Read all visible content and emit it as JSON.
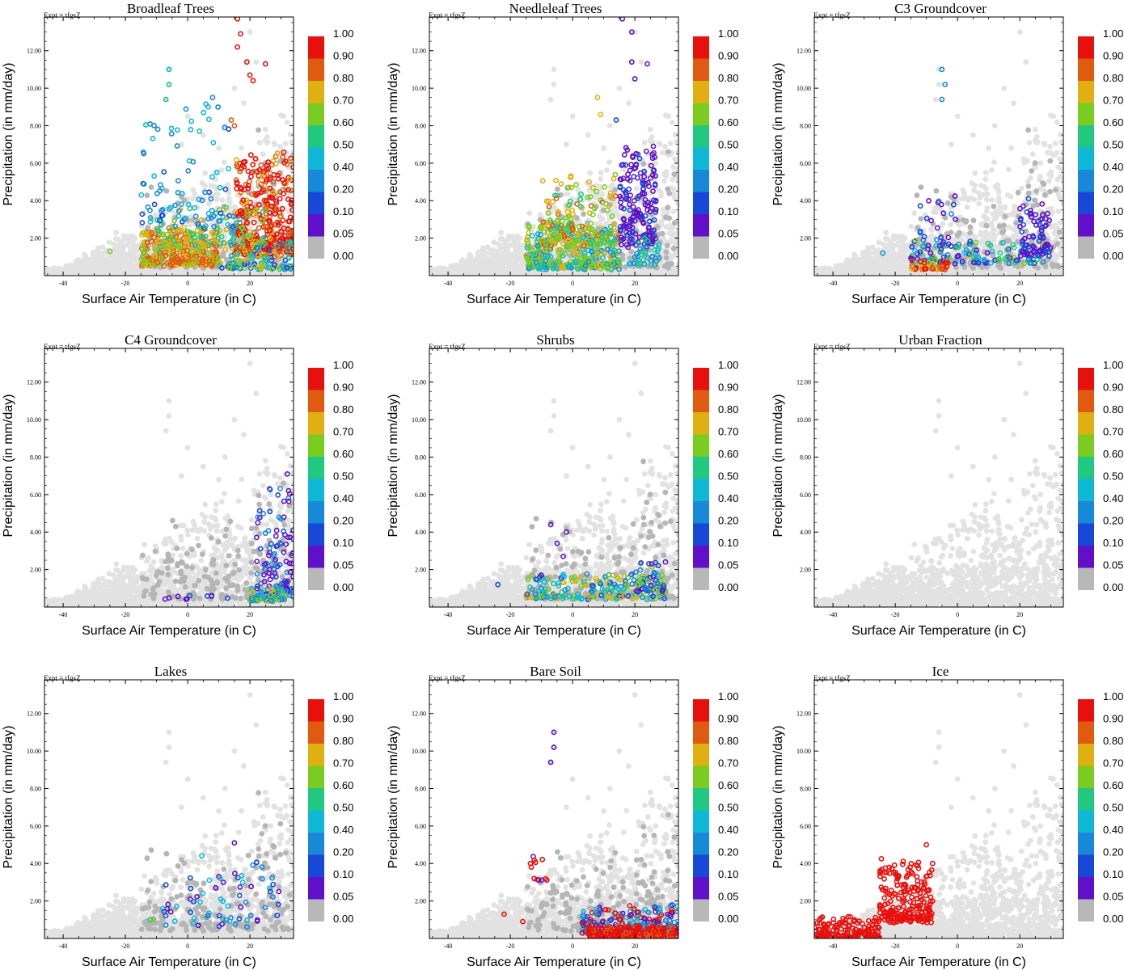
{
  "chart_data": {
    "type": "scatter",
    "layout": "3x3 grid",
    "xlabel": "Surface Air Temperature (in C)",
    "ylabel": "Precipitation (in mm/day)",
    "xlim": [
      -46,
      34
    ],
    "ylim": [
      0,
      13.8
    ],
    "xticks": [
      "-40",
      "-20",
      "0",
      "20"
    ],
    "xtick_values": [
      -40,
      -20,
      0,
      20
    ],
    "yticks": [
      "2.00",
      "4.00",
      "6.00",
      "8.00",
      "10.00",
      "12.00"
    ],
    "ytick_values": [
      2,
      4,
      6,
      8,
      10,
      12
    ],
    "expt_label": "Expt = tfgsZ",
    "colorbar": {
      "labels": [
        "1.00",
        "0.90",
        "0.80",
        "0.70",
        "0.60",
        "0.50",
        "0.40",
        "0.20",
        "0.10",
        "0.05",
        "0.00"
      ],
      "colors": [
        "#e8100c",
        "#e05a10",
        "#e0b010",
        "#7acc20",
        "#20c880",
        "#10b8d8",
        "#1888d8",
        "#1848d8",
        "#6010c8",
        "#b8b8b8"
      ],
      "bin_meaning": [
        "0.90-1.00",
        "0.80-0.90",
        "0.70-0.80",
        "0.60-0.70",
        "0.50-0.60",
        "0.40-0.50",
        "0.20-0.40",
        "0.10-0.20",
        "0.05-0.10",
        "0.00-0.05"
      ]
    },
    "background_color": "#e2e2e2",
    "zero_fraction_color": "#b5b5b5",
    "panels": [
      {
        "title": "Broadleaf Trees",
        "colored_clusters": [
          {
            "x_range": [
              15,
              34
            ],
            "y_range": [
              1.0,
              6.8
            ],
            "n": 360,
            "colors": [
              0,
              0,
              0,
              0,
              1,
              1,
              2
            ]
          },
          {
            "x_range": [
              -15,
              10
            ],
            "y_range": [
              0.5,
              2.6
            ],
            "n": 320,
            "colors": [
              1,
              1,
              2,
              2,
              1,
              3
            ]
          },
          {
            "x_range": [
              -10,
              25
            ],
            "y_range": [
              1.5,
              3.8
            ],
            "n": 100,
            "colors": [
              2,
              3,
              4,
              5
            ]
          },
          {
            "x_range": [
              -15,
              15
            ],
            "y_range": [
              2.5,
              9.5
            ],
            "n": 90,
            "colors": [
              5,
              6,
              7,
              6,
              5
            ]
          },
          {
            "x_range": [
              10,
              34
            ],
            "y_range": [
              0.3,
              2.0
            ],
            "n": 100,
            "colors": [
              2,
              3,
              4,
              5,
              6,
              7
            ]
          }
        ],
        "colored_points": [
          {
            "x": 16,
            "y": 13.7,
            "c": 0
          },
          {
            "x": 19,
            "y": 11.4,
            "c": 0
          },
          {
            "x": 21,
            "y": 10.4,
            "c": 0
          },
          {
            "x": 25,
            "y": 11.3,
            "c": 0
          },
          {
            "x": 20,
            "y": 10.7,
            "c": 0
          },
          {
            "x": 16,
            "y": 12.2,
            "c": 0
          },
          {
            "x": 17,
            "y": 12.9,
            "c": 0
          },
          {
            "x": -6,
            "y": 11.0,
            "c": 5
          },
          {
            "x": -6,
            "y": 10.2,
            "c": 4
          },
          {
            "x": -7,
            "y": 9.4,
            "c": 4
          },
          {
            "x": 8,
            "y": 9.5,
            "c": 6
          },
          {
            "x": 15,
            "y": 8.0,
            "c": 1
          },
          {
            "x": -25,
            "y": 1.3,
            "c": 3
          },
          {
            "x": 14,
            "y": 8.3,
            "c": 1
          }
        ]
      },
      {
        "title": "Needleleaf Trees",
        "colored_clusters": [
          {
            "x_range": [
              -15,
              15
            ],
            "y_range": [
              0.3,
              2.8
            ],
            "n": 380,
            "colors": [
              3,
              4,
              5,
              6,
              3,
              2
            ]
          },
          {
            "x_range": [
              -10,
              15
            ],
            "y_range": [
              1.5,
              5.5
            ],
            "n": 160,
            "colors": [
              2,
              2,
              3,
              1,
              4
            ]
          },
          {
            "x_range": [
              15,
              27
            ],
            "y_range": [
              1.5,
              7.0
            ],
            "n": 170,
            "colors": [
              8,
              8,
              8,
              7
            ]
          },
          {
            "x_range": [
              18,
              28
            ],
            "y_range": [
              0.5,
              2.2
            ],
            "n": 40,
            "colors": [
              6,
              5,
              4
            ]
          }
        ],
        "colored_points": [
          {
            "x": 16,
            "y": 13.7,
            "c": 8
          },
          {
            "x": 19,
            "y": 11.4,
            "c": 8
          },
          {
            "x": 20,
            "y": 10.5,
            "c": 8
          },
          {
            "x": 24,
            "y": 11.3,
            "c": 8
          },
          {
            "x": 19,
            "y": 13.0,
            "c": 8
          },
          {
            "x": 8,
            "y": 9.5,
            "c": 2
          },
          {
            "x": 14,
            "y": 8.3,
            "c": 7
          },
          {
            "x": 9,
            "y": 8.6,
            "c": 2
          }
        ]
      },
      {
        "title": "C3 Groundcover",
        "colored_clusters": [
          {
            "x_range": [
              -15,
              28
            ],
            "y_range": [
              0.6,
              1.9
            ],
            "n": 140,
            "colors": [
              6,
              7,
              8,
              5,
              4,
              3
            ]
          },
          {
            "x_range": [
              20,
              30
            ],
            "y_range": [
              1.0,
              4.2
            ],
            "n": 80,
            "colors": [
              8,
              8,
              7
            ]
          },
          {
            "x_range": [
              -15,
              -3
            ],
            "y_range": [
              0.3,
              0.8
            ],
            "n": 40,
            "colors": [
              0,
              1,
              2
            ]
          },
          {
            "x_range": [
              -12,
              0
            ],
            "y_range": [
              1.5,
              4.5
            ],
            "n": 25,
            "colors": [
              8,
              7,
              6
            ]
          }
        ],
        "colored_points": [
          {
            "x": -5,
            "y": 11.0,
            "c": 6
          },
          {
            "x": -4,
            "y": 10.2,
            "c": 6
          },
          {
            "x": -5,
            "y": 9.4,
            "c": 6
          },
          {
            "x": -24,
            "y": 1.2,
            "c": 6
          }
        ]
      },
      {
        "title": "C4 Groundcover",
        "colored_clusters": [
          {
            "x_range": [
              22,
              34
            ],
            "y_range": [
              0.4,
              6.5
            ],
            "n": 110,
            "colors": [
              8,
              8,
              7,
              6
            ]
          },
          {
            "x_range": [
              20,
              32
            ],
            "y_range": [
              0.3,
              1.2
            ],
            "n": 60,
            "colors": [
              5,
              4,
              3,
              2,
              6
            ]
          },
          {
            "x_range": [
              -8,
              15
            ],
            "y_range": [
              0.4,
              0.7
            ],
            "n": 10,
            "colors": [
              8,
              7
            ]
          }
        ],
        "colored_points": [
          {
            "x": 32,
            "y": 7.1,
            "c": 8
          }
        ]
      },
      {
        "title": "Shrubs",
        "colored_clusters": [
          {
            "x_range": [
              -15,
              30
            ],
            "y_range": [
              0.4,
              1.8
            ],
            "n": 200,
            "colors": [
              3,
              4,
              5,
              6,
              7,
              2
            ]
          },
          {
            "x_range": [
              20,
              30
            ],
            "y_range": [
              0.8,
              2.6
            ],
            "n": 50,
            "colors": [
              6,
              7,
              8,
              3
            ]
          }
        ],
        "colored_points": [
          {
            "x": -5,
            "y": 3.4,
            "c": 8
          },
          {
            "x": -7,
            "y": 4.4,
            "c": 8
          },
          {
            "x": -3,
            "y": 2.7,
            "c": 8
          },
          {
            "x": -24,
            "y": 1.2,
            "c": 7
          },
          {
            "x": -10,
            "y": 1.7,
            "c": 8
          },
          {
            "x": -2,
            "y": 4.0,
            "c": 8
          }
        ]
      },
      {
        "title": "Urban Fraction",
        "colored_clusters": [],
        "colored_points": []
      },
      {
        "title": "Lakes",
        "colored_clusters": [
          {
            "x_range": [
              -8,
              30
            ],
            "y_range": [
              0.6,
              4.5
            ],
            "n": 70,
            "colors": [
              8,
              7,
              6,
              5
            ]
          }
        ],
        "colored_points": [
          {
            "x": -12,
            "y": 1.0,
            "c": 4
          },
          {
            "x": -11,
            "y": 1.0,
            "c": 3
          },
          {
            "x": 15,
            "y": 5.1,
            "c": 8
          }
        ]
      },
      {
        "title": "Bare Soil",
        "colored_clusters": [
          {
            "x_range": [
              3,
              34
            ],
            "y_range": [
              0.2,
              1.8
            ],
            "n": 260,
            "colors": [
              8,
              7,
              6,
              5,
              0,
              0
            ]
          },
          {
            "x_range": [
              5,
              34
            ],
            "y_range": [
              0.1,
              0.7
            ],
            "n": 200,
            "colors": [
              0,
              0,
              0,
              1
            ]
          },
          {
            "x_range": [
              -14,
              -8
            ],
            "y_range": [
              3.0,
              4.6
            ],
            "n": 12,
            "colors": [
              0,
              0,
              8
            ]
          }
        ],
        "colored_points": [
          {
            "x": -6,
            "y": 11.0,
            "c": 8
          },
          {
            "x": -6,
            "y": 10.2,
            "c": 8
          },
          {
            "x": -7,
            "y": 9.4,
            "c": 8
          },
          {
            "x": -22,
            "y": 1.3,
            "c": 0
          },
          {
            "x": -16,
            "y": 0.9,
            "c": 0
          }
        ]
      },
      {
        "title": "Ice",
        "colored_clusters": [
          {
            "x_range": [
              -46,
              -25
            ],
            "y_range": [
              0.0,
              1.2
            ],
            "n": 160,
            "colors": [
              0
            ]
          },
          {
            "x_range": [
              -25,
              -8
            ],
            "y_range": [
              0.8,
              4.3
            ],
            "n": 220,
            "colors": [
              0
            ]
          }
        ],
        "colored_points": [
          {
            "x": -10,
            "y": 5.0,
            "c": 0
          },
          {
            "x": -8,
            "y": 4.0,
            "c": 0
          }
        ]
      }
    ]
  }
}
